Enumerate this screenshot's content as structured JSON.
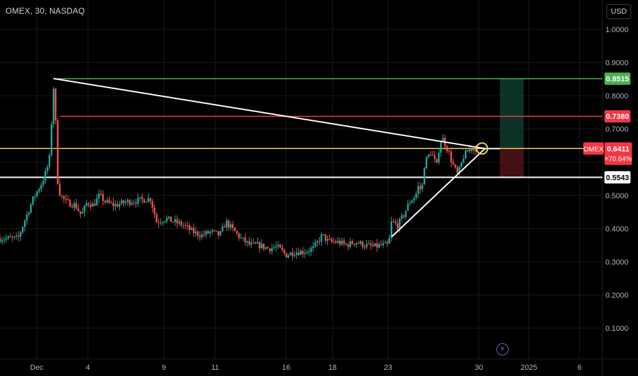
{
  "header": {
    "title": "OMEX, 30, NASDAQ",
    "currency": "USD",
    "flash_icon": "lightning-icon"
  },
  "chart_data": {
    "type": "candlestick",
    "symbol": "OMEX",
    "interval": "30",
    "exchange": "NASDAQ",
    "ylim": [
      0.0,
      1.05
    ],
    "y_ticks": [
      "1.0000",
      "0.9000",
      "0.8000",
      "0.7000",
      "0.6000",
      "0.5000",
      "0.4000",
      "0.3000",
      "0.2000",
      "0.1000"
    ],
    "x_ticks": [
      "Dec",
      "4",
      "9",
      "11",
      "16",
      "18",
      "23",
      "30",
      "2025",
      "6"
    ],
    "price_levels": [
      {
        "label": "0.8515",
        "value": 0.8515,
        "color": "#4caf50",
        "badge_bg": "#4caf50",
        "badge_fg": "#ffffff"
      },
      {
        "label": "0.7380",
        "value": 0.738,
        "color": "#f23645",
        "badge_bg": "#f23645",
        "badge_fg": "#ffffff"
      },
      {
        "label": "0.6411",
        "value": 0.6411,
        "color": "#f7d34a",
        "badge_bg": "#f23645",
        "badge_fg": "#ffffff"
      },
      {
        "label": "0.5543",
        "value": 0.5543,
        "color": "#ffffff",
        "badge_bg": "#ffffff",
        "badge_fg": "#000000"
      }
    ],
    "last_price": {
      "symbol_label": "OMEX",
      "price": "0.6411",
      "change": "+70.64%"
    },
    "trendlines": [
      {
        "from": {
          "x": 0.0886,
          "y": 0.852
        },
        "to": {
          "x": 0.805,
          "y": 0.641
        },
        "color": "#ffffff"
      },
      {
        "from": {
          "x": 0.65,
          "y": 0.375
        },
        "to": {
          "x": 0.805,
          "y": 0.641
        },
        "color": "#ffffff"
      }
    ],
    "position": {
      "entry": 0.6411,
      "target": 0.8515,
      "stop": 0.5543
    },
    "price_path": [
      [
        0.0,
        0.37
      ],
      [
        0.03,
        0.37
      ],
      [
        0.04,
        0.42
      ],
      [
        0.055,
        0.49
      ],
      [
        0.07,
        0.54
      ],
      [
        0.078,
        0.58
      ],
      [
        0.083,
        0.62
      ],
      [
        0.086,
        0.74
      ],
      [
        0.088,
        0.85
      ],
      [
        0.092,
        0.74
      ],
      [
        0.095,
        0.55
      ],
      [
        0.1,
        0.5
      ],
      [
        0.11,
        0.48
      ],
      [
        0.125,
        0.47
      ],
      [
        0.135,
        0.44
      ],
      [
        0.145,
        0.48
      ],
      [
        0.155,
        0.47
      ],
      [
        0.165,
        0.5
      ],
      [
        0.175,
        0.48
      ],
      [
        0.19,
        0.47
      ],
      [
        0.21,
        0.48
      ],
      [
        0.23,
        0.485
      ],
      [
        0.25,
        0.49
      ],
      [
        0.26,
        0.42
      ],
      [
        0.275,
        0.43
      ],
      [
        0.29,
        0.42
      ],
      [
        0.305,
        0.41
      ],
      [
        0.32,
        0.39
      ],
      [
        0.335,
        0.38
      ],
      [
        0.35,
        0.39
      ],
      [
        0.365,
        0.38
      ],
      [
        0.375,
        0.42
      ],
      [
        0.385,
        0.4
      ],
      [
        0.4,
        0.37
      ],
      [
        0.415,
        0.35
      ],
      [
        0.43,
        0.35
      ],
      [
        0.445,
        0.34
      ],
      [
        0.46,
        0.345
      ],
      [
        0.475,
        0.32
      ],
      [
        0.49,
        0.33
      ],
      [
        0.505,
        0.33
      ],
      [
        0.52,
        0.34
      ],
      [
        0.535,
        0.38
      ],
      [
        0.545,
        0.36
      ],
      [
        0.56,
        0.36
      ],
      [
        0.575,
        0.35
      ],
      [
        0.59,
        0.36
      ],
      [
        0.605,
        0.35
      ],
      [
        0.62,
        0.345
      ],
      [
        0.635,
        0.35
      ],
      [
        0.645,
        0.35
      ],
      [
        0.65,
        0.42
      ],
      [
        0.66,
        0.41
      ],
      [
        0.67,
        0.44
      ],
      [
        0.68,
        0.48
      ],
      [
        0.69,
        0.5
      ],
      [
        0.695,
        0.53
      ],
      [
        0.7,
        0.51
      ],
      [
        0.705,
        0.6
      ],
      [
        0.715,
        0.63
      ],
      [
        0.725,
        0.59
      ],
      [
        0.73,
        0.66
      ],
      [
        0.735,
        0.67
      ],
      [
        0.74,
        0.65
      ],
      [
        0.745,
        0.63
      ],
      [
        0.75,
        0.6
      ],
      [
        0.755,
        0.58
      ],
      [
        0.76,
        0.56
      ],
      [
        0.77,
        0.62
      ],
      [
        0.78,
        0.64
      ],
      [
        0.79,
        0.641
      ]
    ]
  }
}
